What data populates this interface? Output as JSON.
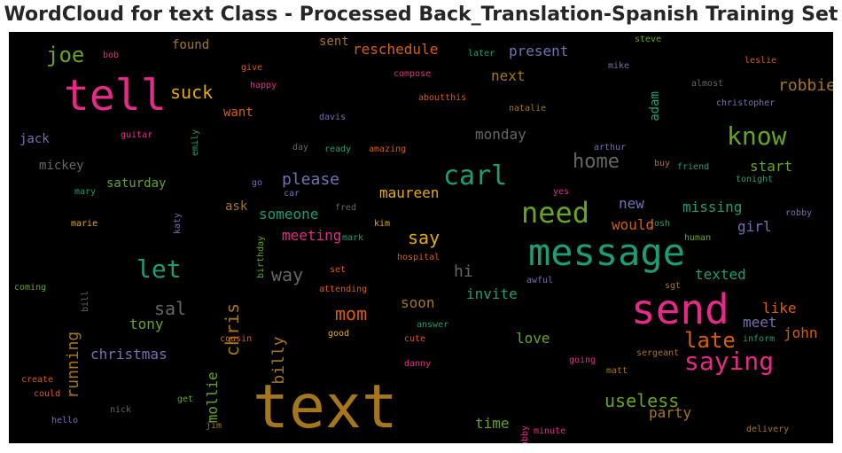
{
  "chart_data": {
    "type": "wordcloud",
    "title": "WordCloud for text Class - Processed Back_Translation-Spanish Training Set",
    "background": "#000000",
    "colormap": [
      "#1b9e77",
      "#d95f02",
      "#7570b3",
      "#e7298a",
      "#66a61e",
      "#e6ab02",
      "#a6761d",
      "#666666"
    ],
    "words": [
      {
        "text": "text",
        "color": "#a6761d"
      },
      {
        "text": "tell",
        "color": "#e7298a"
      },
      {
        "text": "send",
        "color": "#e7298a"
      },
      {
        "text": "message",
        "color": "#1b9e77"
      },
      {
        "text": "need",
        "color": "#66a61e"
      },
      {
        "text": "carl",
        "color": "#1b9e77"
      },
      {
        "text": "saying",
        "color": "#e7298a"
      },
      {
        "text": "know",
        "color": "#66a61e"
      },
      {
        "text": "let",
        "color": "#1b9e77"
      },
      {
        "text": "joe",
        "color": "#66a61e"
      },
      {
        "text": "late",
        "color": "#d95f02"
      },
      {
        "text": "home",
        "color": "#666666"
      },
      {
        "text": "mom",
        "color": "#d95f02"
      },
      {
        "text": "say",
        "color": "#e6ab02"
      },
      {
        "text": "suck",
        "color": "#e6ab02"
      },
      {
        "text": "useless",
        "color": "#66a61e"
      },
      {
        "text": "way",
        "color": "#666666"
      },
      {
        "text": "sal",
        "color": "#666666"
      },
      {
        "text": "chris",
        "color": "#a6761d"
      },
      {
        "text": "running",
        "color": "#a6761d"
      },
      {
        "text": "billy",
        "color": "#a6761d"
      },
      {
        "text": "robbie",
        "color": "#a6761d"
      },
      {
        "text": "please",
        "color": "#7570b3"
      },
      {
        "text": "someone",
        "color": "#1b9e77"
      },
      {
        "text": "maureen",
        "color": "#e6ab02"
      },
      {
        "text": "meeting",
        "color": "#e7298a"
      },
      {
        "text": "would",
        "color": "#d95f02"
      },
      {
        "text": "new",
        "color": "#7570b3"
      },
      {
        "text": "hi",
        "color": "#666666"
      },
      {
        "text": "soon",
        "color": "#a6761d"
      },
      {
        "text": "invite",
        "color": "#1b9e77"
      },
      {
        "text": "love",
        "color": "#66a61e"
      },
      {
        "text": "time",
        "color": "#66a61e"
      },
      {
        "text": "party",
        "color": "#a6761d"
      },
      {
        "text": "christmas",
        "color": "#7570b3"
      },
      {
        "text": "tony",
        "color": "#66a61e"
      },
      {
        "text": "mollie",
        "color": "#66a61e"
      },
      {
        "text": "texted",
        "color": "#1b9e77"
      },
      {
        "text": "missing",
        "color": "#1b9e77"
      },
      {
        "text": "girl",
        "color": "#7570b3"
      },
      {
        "text": "like",
        "color": "#d95f02"
      },
      {
        "text": "meet",
        "color": "#7570b3"
      },
      {
        "text": "john",
        "color": "#d95f02"
      },
      {
        "text": "start",
        "color": "#66a61e"
      },
      {
        "text": "monday",
        "color": "#666666"
      },
      {
        "text": "next",
        "color": "#a6761d"
      },
      {
        "text": "present",
        "color": "#7570b3"
      },
      {
        "text": "reschedule",
        "color": "#d95f02"
      },
      {
        "text": "sent",
        "color": "#a6761d"
      },
      {
        "text": "found",
        "color": "#a6761d"
      },
      {
        "text": "want",
        "color": "#d95f02"
      },
      {
        "text": "ask",
        "color": "#a6761d"
      },
      {
        "text": "saturday",
        "color": "#66a61e"
      },
      {
        "text": "mickey",
        "color": "#666666"
      },
      {
        "text": "jack",
        "color": "#7570b3"
      },
      {
        "text": "adam",
        "color": "#1b9e77"
      },
      {
        "text": "bob",
        "color": "#e7298a"
      },
      {
        "text": "give",
        "color": "#d95f02"
      },
      {
        "text": "happy",
        "color": "#e7298a"
      },
      {
        "text": "compose",
        "color": "#e7298a"
      },
      {
        "text": "aboutthis",
        "color": "#d95f02"
      },
      {
        "text": "later",
        "color": "#1b9e77"
      },
      {
        "text": "steve",
        "color": "#66a61e"
      },
      {
        "text": "mike",
        "color": "#7570b3"
      },
      {
        "text": "leslie",
        "color": "#d95f02"
      },
      {
        "text": "almost",
        "color": "#666666"
      },
      {
        "text": "christopher",
        "color": "#7570b3"
      },
      {
        "text": "natalie",
        "color": "#a6761d"
      },
      {
        "text": "davis",
        "color": "#7570b3"
      },
      {
        "text": "guitar",
        "color": "#e7298a"
      },
      {
        "text": "emily",
        "color": "#1b9e77"
      },
      {
        "text": "day",
        "color": "#666666"
      },
      {
        "text": "ready",
        "color": "#1b9e77"
      },
      {
        "text": "amazing",
        "color": "#d95f02"
      },
      {
        "text": "arthur",
        "color": "#7570b3"
      },
      {
        "text": "buy",
        "color": "#a6761d"
      },
      {
        "text": "friend",
        "color": "#1b9e77"
      },
      {
        "text": "tonight",
        "color": "#1b9e77"
      },
      {
        "text": "go",
        "color": "#7570b3"
      },
      {
        "text": "car",
        "color": "#7570b3"
      },
      {
        "text": "mary",
        "color": "#1b9e77"
      },
      {
        "text": "katy",
        "color": "#7570b3"
      },
      {
        "text": "yes",
        "color": "#e7298a"
      },
      {
        "text": "fred",
        "color": "#666666"
      },
      {
        "text": "kim",
        "color": "#e6ab02"
      },
      {
        "text": "mark",
        "color": "#1b9e77"
      },
      {
        "text": "marie",
        "color": "#e6ab02"
      },
      {
        "text": "josh",
        "color": "#1b9e77"
      },
      {
        "text": "robby",
        "color": "#7570b3"
      },
      {
        "text": "human",
        "color": "#66a61e"
      },
      {
        "text": "birthday",
        "color": "#66a61e"
      },
      {
        "text": "hospital",
        "color": "#d95f02"
      },
      {
        "text": "set",
        "color": "#d95f02"
      },
      {
        "text": "coming",
        "color": "#66a61e"
      },
      {
        "text": "bill",
        "color": "#666666"
      },
      {
        "text": "attending",
        "color": "#d95f02"
      },
      {
        "text": "awful",
        "color": "#7570b3"
      },
      {
        "text": "sgt",
        "color": "#a6761d"
      },
      {
        "text": "answer",
        "color": "#1b9e77"
      },
      {
        "text": "good",
        "color": "#e6ab02"
      },
      {
        "text": "cute",
        "color": "#d95f02"
      },
      {
        "text": "cousin",
        "color": "#d95f02"
      },
      {
        "text": "inform",
        "color": "#1b9e77"
      },
      {
        "text": "sergeant",
        "color": "#a6761d"
      },
      {
        "text": "going",
        "color": "#e7298a"
      },
      {
        "text": "danny",
        "color": "#e7298a"
      },
      {
        "text": "matt",
        "color": "#a6761d"
      },
      {
        "text": "create",
        "color": "#d95f02"
      },
      {
        "text": "could",
        "color": "#d95f02"
      },
      {
        "text": "get",
        "color": "#66a61e"
      },
      {
        "text": "nick",
        "color": "#666666"
      },
      {
        "text": "hello",
        "color": "#7570b3"
      },
      {
        "text": "jim",
        "color": "#a6761d"
      },
      {
        "text": "abby",
        "color": "#e7298a"
      },
      {
        "text": "minute",
        "color": "#e7298a"
      },
      {
        "text": "delivery",
        "color": "#a6761d"
      }
    ]
  }
}
